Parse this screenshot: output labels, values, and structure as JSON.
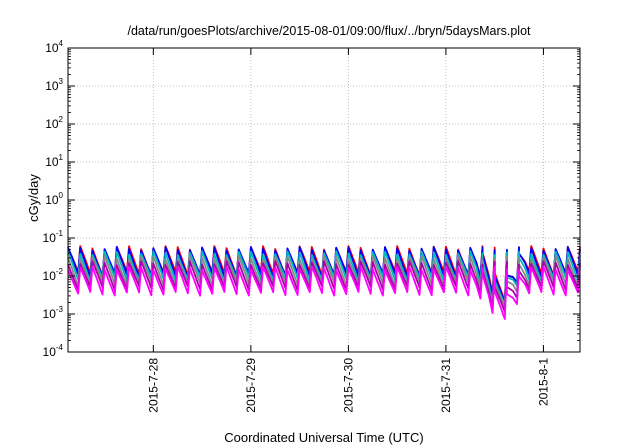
{
  "chart_data": {
    "type": "line",
    "title": "/data/run/goesPlots/archive/2015-08-01/09:00/flux/../bryn/5daysMars.plot",
    "xlabel": "Coordinated Universal Time (UTC)",
    "ylabel": "cGy/day",
    "y_scale": "log",
    "ylim": [
      0.0001,
      10000
    ],
    "xlim": [
      "2015-07-27 03:00",
      "2015-08-01 09:00"
    ],
    "y_ticks": [
      {
        "base": "10",
        "exp": "-4",
        "value": 0.0001
      },
      {
        "base": "10",
        "exp": "-3",
        "value": 0.001
      },
      {
        "base": "10",
        "exp": "-2",
        "value": 0.01
      },
      {
        "base": "10",
        "exp": "-1",
        "value": 0.1
      },
      {
        "base": "10",
        "exp": "0",
        "value": 1
      },
      {
        "base": "10",
        "exp": "1",
        "value": 10
      },
      {
        "base": "10",
        "exp": "2",
        "value": 100
      },
      {
        "base": "10",
        "exp": "3",
        "value": 1000
      },
      {
        "base": "10",
        "exp": "4",
        "value": 10000
      }
    ],
    "x_ticks": [
      {
        "label": "2015-7-28",
        "value": "2015-07-28 00:00"
      },
      {
        "label": "2015-7-29",
        "value": "2015-07-29 00:00"
      },
      {
        "label": "2015-7-30",
        "value": "2015-07-30 00:00"
      },
      {
        "label": "2015-7-31",
        "value": "2015-07-31 00:00"
      },
      {
        "label": "2015-8-1",
        "value": "2015-08-01 00:00"
      }
    ],
    "grid": true,
    "legend": "none",
    "series_pattern": {
      "period_hours": 3,
      "shape": "sawtooth: sharp rise at each cycle start, gradual decay",
      "dip_dates": [
        "2015-07-31 12:00",
        "2015-07-31 15:00"
      ]
    },
    "series": [
      {
        "color": "#ff0000",
        "peak": 0.055,
        "trough": 0.0085
      },
      {
        "color": "#0000ff",
        "peak": 0.052,
        "trough": 0.0075
      },
      {
        "color": "#00bbbb",
        "peak": 0.04,
        "trough": 0.006
      },
      {
        "color": "#888888",
        "peak": 0.03,
        "trough": 0.0045
      },
      {
        "color": "#aa00aa",
        "peak": 0.022,
        "trough": 0.0035
      },
      {
        "color": "#ff00ff",
        "peak": 0.016,
        "trough": 0.0025
      }
    ]
  }
}
